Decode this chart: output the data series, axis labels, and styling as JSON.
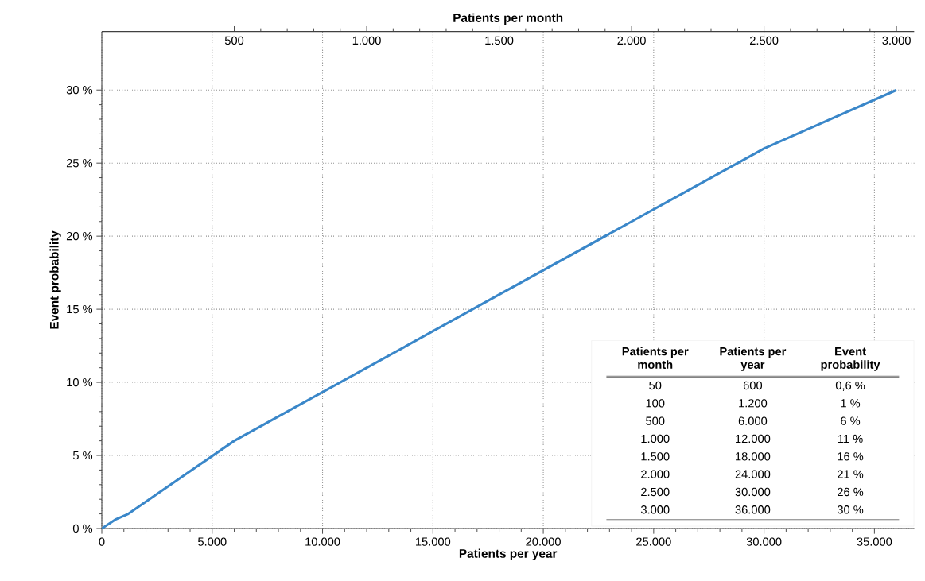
{
  "chart_data": {
    "type": "line",
    "xlabel": "Patients per year",
    "x2label": "Patients per month",
    "ylabel": "Event probability",
    "x": [
      0,
      600,
      1200,
      6000,
      12000,
      18000,
      24000,
      30000,
      36000
    ],
    "series": [
      {
        "color": "#3a87c9",
        "values": [
          0,
          0.6,
          1,
          6,
          11,
          16,
          21,
          26,
          30
        ]
      }
    ],
    "xlim": [
      0,
      36800
    ],
    "ylim": [
      0,
      34
    ],
    "x2lim": [
      0,
      3066.7
    ],
    "xticks": [
      0,
      {
        "value": 5000,
        "label": "5.000"
      },
      {
        "value": 10000,
        "label": "10.000"
      },
      {
        "value": 15000,
        "label": "15.000"
      },
      {
        "value": 20000,
        "label": "20.000"
      },
      {
        "value": 25000,
        "label": "25.000"
      },
      {
        "value": 30000,
        "label": "30.000"
      },
      {
        "value": 35000,
        "label": "35.000"
      }
    ],
    "x2ticks": [
      500,
      {
        "value": 1000,
        "label": "1.000"
      },
      {
        "value": 1500,
        "label": "1.500"
      },
      {
        "value": 2000,
        "label": "2.000"
      },
      {
        "value": 2500,
        "label": "2.500"
      },
      {
        "value": 3000,
        "label": "3.000"
      }
    ],
    "yticks": [
      {
        "value": 0,
        "label": "0 %"
      },
      {
        "value": 5,
        "label": "5 %"
      },
      {
        "value": 10,
        "label": "10 %"
      },
      {
        "value": 15,
        "label": "15 %"
      },
      {
        "value": 20,
        "label": "20 %"
      },
      {
        "value": 25,
        "label": "25 %"
      },
      {
        "value": 30,
        "label": "30 %"
      }
    ],
    "grid": true,
    "marker": "none",
    "line_style": "solid",
    "annotations": [
      "Patients per month",
      "Patients per year",
      "Event probability",
      "50",
      "600",
      "0,6 %",
      "100",
      "1.200",
      "1 %",
      "500",
      "6.000",
      "6 %",
      "1.000",
      "12.000",
      "11 %",
      "1.500",
      "18.000",
      "16 %",
      "2.000",
      "24.000",
      "21 %",
      "2.500",
      "30.000",
      "26 %",
      "3.000",
      "36.000",
      "30 %"
    ]
  }
}
